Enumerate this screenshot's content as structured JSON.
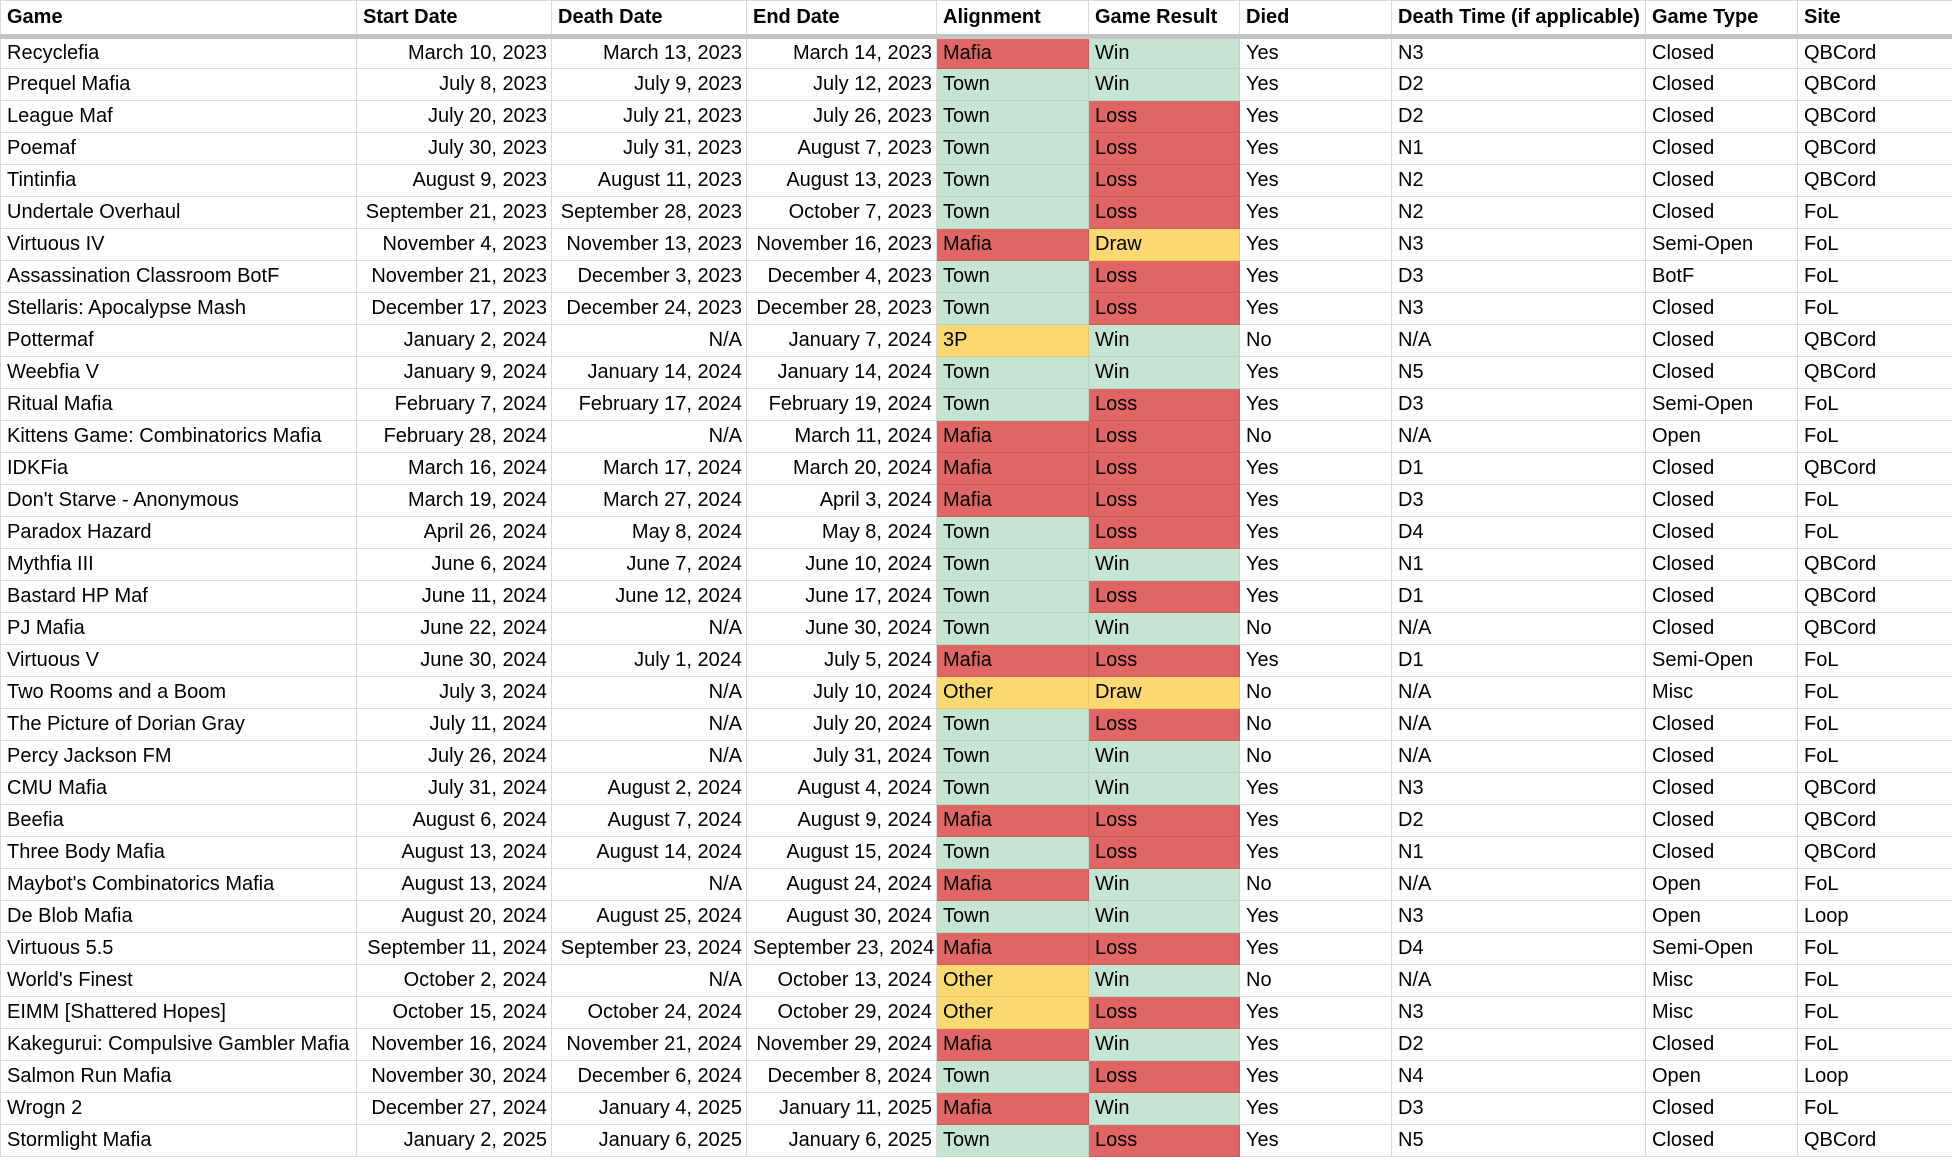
{
  "colors": {
    "mafia": "#e06666",
    "loss": "#e06666",
    "town": "#c6e4d3",
    "win": "#c6e4d3",
    "neutral": "#fbd872",
    "header_rule": "#c4c4c4",
    "grid": "#d9d9d9"
  },
  "headers": [
    "Game",
    "Start Date",
    "Death Date",
    "End Date",
    "Alignment",
    "Game Result",
    "Died",
    "Death Time (if applicable)",
    "Game Type",
    "Site"
  ],
  "rows": [
    [
      "Recyclefia",
      "March 10, 2023",
      "March 13, 2023",
      "March 14, 2023",
      "Mafia",
      "Win",
      "Yes",
      "N3",
      "Closed",
      "QBCord"
    ],
    [
      "Prequel Mafia",
      "July 8, 2023",
      "July 9, 2023",
      "July 12, 2023",
      "Town",
      "Win",
      "Yes",
      "D2",
      "Closed",
      "QBCord"
    ],
    [
      "League Maf",
      "July 20, 2023",
      "July 21, 2023",
      "July 26, 2023",
      "Town",
      "Loss",
      "Yes",
      "D2",
      "Closed",
      "QBCord"
    ],
    [
      "Poemaf",
      "July 30, 2023",
      "July 31, 2023",
      "August 7, 2023",
      "Town",
      "Loss",
      "Yes",
      "N1",
      "Closed",
      "QBCord"
    ],
    [
      "Tintinfia",
      "August 9, 2023",
      "August 11, 2023",
      "August 13, 2023",
      "Town",
      "Loss",
      "Yes",
      "N2",
      "Closed",
      "QBCord"
    ],
    [
      "Undertale Overhaul",
      "September 21, 2023",
      "September 28, 2023",
      "October 7, 2023",
      "Town",
      "Loss",
      "Yes",
      "N2",
      "Closed",
      "FoL"
    ],
    [
      "Virtuous IV",
      "November 4, 2023",
      "November 13, 2023",
      "November 16, 2023",
      "Mafia",
      "Draw",
      "Yes",
      "N3",
      "Semi-Open",
      "FoL"
    ],
    [
      "Assassination Classroom BotF",
      "November 21, 2023",
      "December 3, 2023",
      "December 4, 2023",
      "Town",
      "Loss",
      "Yes",
      "D3",
      "BotF",
      "FoL"
    ],
    [
      "Stellaris: Apocalypse Mash",
      "December 17, 2023",
      "December 24, 2023",
      "December 28, 2023",
      "Town",
      "Loss",
      "Yes",
      "N3",
      "Closed",
      "FoL"
    ],
    [
      "Pottermaf",
      "January 2, 2024",
      "N/A",
      "January 7, 2024",
      "3P",
      "Win",
      "No",
      "N/A",
      "Closed",
      "QBCord"
    ],
    [
      "Weebfia V",
      "January 9, 2024",
      "January 14, 2024",
      "January 14, 2024",
      "Town",
      "Win",
      "Yes",
      "N5",
      "Closed",
      "QBCord"
    ],
    [
      "Ritual Mafia",
      "February 7, 2024",
      "February 17, 2024",
      "February 19, 2024",
      "Town",
      "Loss",
      "Yes",
      "D3",
      "Semi-Open",
      "FoL"
    ],
    [
      "Kittens Game: Combinatorics Mafia",
      "February 28, 2024",
      "N/A",
      "March 11, 2024",
      "Mafia",
      "Loss",
      "No",
      "N/A",
      "Open",
      "FoL"
    ],
    [
      "IDKFia",
      "March 16, 2024",
      "March 17, 2024",
      "March 20, 2024",
      "Mafia",
      "Loss",
      "Yes",
      "D1",
      "Closed",
      "QBCord"
    ],
    [
      "Don't Starve - Anonymous",
      "March 19, 2024",
      "March 27, 2024",
      "April 3, 2024",
      "Mafia",
      "Loss",
      "Yes",
      "D3",
      "Closed",
      "FoL"
    ],
    [
      "Paradox Hazard",
      "April 26, 2024",
      "May 8, 2024",
      "May 8, 2024",
      "Town",
      "Loss",
      "Yes",
      "D4",
      "Closed",
      "FoL"
    ],
    [
      "Mythfia III",
      "June 6, 2024",
      "June 7, 2024",
      "June 10, 2024",
      "Town",
      "Win",
      "Yes",
      "N1",
      "Closed",
      "QBCord"
    ],
    [
      "Bastard HP Maf",
      "June 11, 2024",
      "June 12, 2024",
      "June 17, 2024",
      "Town",
      "Loss",
      "Yes",
      "D1",
      "Closed",
      "QBCord"
    ],
    [
      "PJ Mafia",
      "June 22, 2024",
      "N/A",
      "June 30, 2024",
      "Town",
      "Win",
      "No",
      "N/A",
      "Closed",
      "QBCord"
    ],
    [
      "Virtuous V",
      "June 30, 2024",
      "July 1, 2024",
      "July 5, 2024",
      "Mafia",
      "Loss",
      "Yes",
      "D1",
      "Semi-Open",
      "FoL"
    ],
    [
      "Two Rooms and a Boom",
      "July 3, 2024",
      "N/A",
      "July 10, 2024",
      "Other",
      "Draw",
      "No",
      "N/A",
      "Misc",
      "FoL"
    ],
    [
      "The Picture of Dorian Gray",
      "July 11, 2024",
      "N/A",
      "July 20, 2024",
      "Town",
      "Loss",
      "No",
      "N/A",
      "Closed",
      "FoL"
    ],
    [
      "Percy Jackson FM",
      "July 26, 2024",
      "N/A",
      "July 31, 2024",
      "Town",
      "Win",
      "No",
      "N/A",
      "Closed",
      "FoL"
    ],
    [
      "CMU Mafia",
      "July 31, 2024",
      "August 2, 2024",
      "August 4, 2024",
      "Town",
      "Win",
      "Yes",
      "N3",
      "Closed",
      "QBCord"
    ],
    [
      "Beefia",
      "August 6, 2024",
      "August 7, 2024",
      "August 9, 2024",
      "Mafia",
      "Loss",
      "Yes",
      "D2",
      "Closed",
      "QBCord"
    ],
    [
      "Three Body Mafia",
      "August 13, 2024",
      "August 14, 2024",
      "August 15, 2024",
      "Town",
      "Loss",
      "Yes",
      "N1",
      "Closed",
      "QBCord"
    ],
    [
      "Maybot's Combinatorics Mafia",
      "August 13, 2024",
      "N/A",
      "August 24, 2024",
      "Mafia",
      "Win",
      "No",
      "N/A",
      "Open",
      "FoL"
    ],
    [
      "De Blob Mafia",
      "August 20, 2024",
      "August 25, 2024",
      "August 30, 2024",
      "Town",
      "Win",
      "Yes",
      "N3",
      "Open",
      "Loop"
    ],
    [
      "Virtuous 5.5",
      "September 11, 2024",
      "September 23, 2024",
      "September 23, 2024",
      "Mafia",
      "Loss",
      "Yes",
      "D4",
      "Semi-Open",
      "FoL"
    ],
    [
      "World's Finest",
      "October 2, 2024",
      "N/A",
      "October 13, 2024",
      "Other",
      "Win",
      "No",
      "N/A",
      "Misc",
      "FoL"
    ],
    [
      "EIMM [Shattered Hopes]",
      "October 15, 2024",
      "October 24, 2024",
      "October 29, 2024",
      "Other",
      "Loss",
      "Yes",
      "N3",
      "Misc",
      "FoL"
    ],
    [
      "Kakegurui: Compulsive Gambler Mafia",
      "November 16, 2024",
      "November 21, 2024",
      "November 29, 2024",
      "Mafia",
      "Win",
      "Yes",
      "D2",
      "Closed",
      "FoL"
    ],
    [
      "Salmon Run Mafia",
      "November 30, 2024",
      "December 6, 2024",
      "December 8, 2024",
      "Town",
      "Loss",
      "Yes",
      "N4",
      "Open",
      "Loop"
    ],
    [
      "Wrogn 2",
      "December 27, 2024",
      "January 4, 2025",
      "January 11, 2025",
      "Mafia",
      "Win",
      "Yes",
      "D3",
      "Closed",
      "FoL"
    ],
    [
      "Stormlight Mafia",
      "January 2, 2025",
      "January 6, 2025",
      "January 6, 2025",
      "Town",
      "Loss",
      "Yes",
      "N5",
      "Closed",
      "QBCord"
    ]
  ]
}
